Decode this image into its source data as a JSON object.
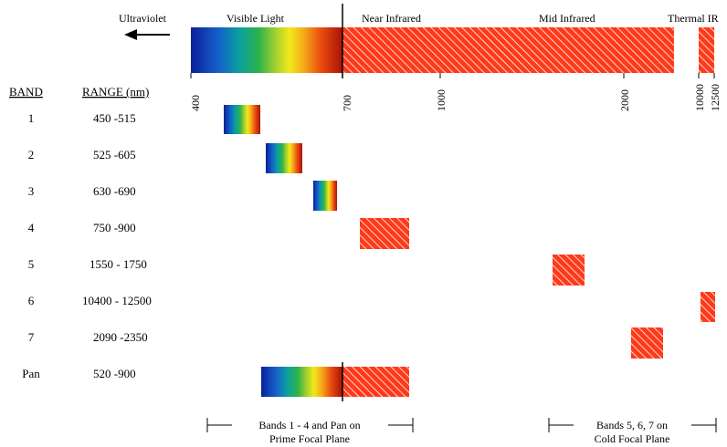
{
  "header": {
    "ultraviolet": "Ultraviolet",
    "visible_light": "Visible Light",
    "near_infrared": "Near Infrared",
    "mid_infrared": "Mid Infrared",
    "thermal_ir": "Thermal IR"
  },
  "axis_ticks": [
    "400",
    "700",
    "1000",
    "2000",
    "10000",
    "12500"
  ],
  "columns": {
    "band": "BAND",
    "range": "RANGE (nm)"
  },
  "bands": [
    {
      "band": "1",
      "range": "450 -515",
      "min_nm": 450,
      "max_nm": 515
    },
    {
      "band": "2",
      "range": "525 -605",
      "min_nm": 525,
      "max_nm": 605
    },
    {
      "band": "3",
      "range": "630 -690",
      "min_nm": 630,
      "max_nm": 690
    },
    {
      "band": "4",
      "range": "750 -900",
      "min_nm": 750,
      "max_nm": 900
    },
    {
      "band": "5",
      "range": "1550 - 1750",
      "min_nm": 1550,
      "max_nm": 1750
    },
    {
      "band": "6",
      "range": "10400 - 12500",
      "min_nm": 10400,
      "max_nm": 12500
    },
    {
      "band": "7",
      "range": "2090 -2350",
      "min_nm": 2090,
      "max_nm": 2350
    },
    {
      "band": "Pan",
      "range": "520 -900",
      "min_nm": 520,
      "max_nm": 900
    }
  ],
  "groups": [
    {
      "line1": "Bands 1 - 4 and Pan on",
      "line2": "Prime Focal Plane"
    },
    {
      "line1": "Bands 5, 6, 7 on",
      "line2": "Cold Focal Plane"
    }
  ],
  "colors": {
    "ir_red": "#ff3a1a",
    "hatch": "#ffffff"
  }
}
